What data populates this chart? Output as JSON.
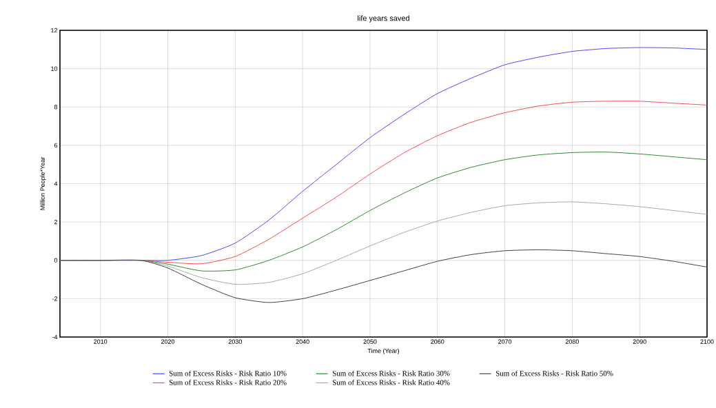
{
  "chart_data": {
    "type": "line",
    "title": "life years saved",
    "xlabel": "Time (Year)",
    "ylabel": "Million People*Year",
    "x": [
      2004,
      2010,
      2016,
      2020,
      2025,
      2030,
      2035,
      2040,
      2045,
      2050,
      2055,
      2060,
      2065,
      2070,
      2075,
      2080,
      2085,
      2090,
      2095,
      2100
    ],
    "series": [
      {
        "name": "Sum of Excess Risks - Risk Ratio 10%",
        "color": "#4a4aff",
        "values": [
          0,
          0,
          0,
          0,
          0.25,
          0.9,
          2.1,
          3.6,
          5.0,
          6.4,
          7.6,
          8.7,
          9.5,
          10.2,
          10.6,
          10.9,
          11.05,
          11.1,
          11.08,
          11.0
        ]
      },
      {
        "name": "Sum of Excess Risks - Risk Ratio 20%",
        "color": "#ff4a4a",
        "values": [
          0,
          0,
          0,
          -0.1,
          -0.18,
          0.2,
          1.1,
          2.2,
          3.3,
          4.5,
          5.6,
          6.5,
          7.2,
          7.7,
          8.05,
          8.25,
          8.3,
          8.3,
          8.2,
          8.1
        ]
      },
      {
        "name": "Sum of Excess Risks - Risk Ratio 30%",
        "color": "#2e8b2e",
        "values": [
          0,
          0,
          0,
          -0.2,
          -0.55,
          -0.5,
          0,
          0.7,
          1.6,
          2.6,
          3.5,
          4.3,
          4.85,
          5.25,
          5.5,
          5.62,
          5.65,
          5.55,
          5.4,
          5.25
        ]
      },
      {
        "name": "Sum of Excess Risks - Risk Ratio 40%",
        "color": "#a8a8a8",
        "values": [
          0,
          0,
          0,
          -0.3,
          -0.9,
          -1.25,
          -1.15,
          -0.7,
          0,
          0.75,
          1.45,
          2.05,
          2.5,
          2.85,
          3.0,
          3.05,
          2.95,
          2.8,
          2.6,
          2.4
        ]
      },
      {
        "name": "Sum of Excess Risks - Risk Ratio 50%",
        "color": "#404040",
        "values": [
          0,
          0,
          0,
          -0.4,
          -1.25,
          -1.95,
          -2.2,
          -2.0,
          -1.55,
          -1.05,
          -0.55,
          -0.05,
          0.3,
          0.5,
          0.55,
          0.5,
          0.35,
          0.2,
          -0.05,
          -0.35
        ]
      }
    ],
    "xlim": [
      2004,
      2100
    ],
    "ylim": [
      -4,
      12
    ],
    "xticks": [
      2010,
      2020,
      2030,
      2040,
      2050,
      2060,
      2070,
      2080,
      2090,
      2100
    ],
    "yticks": [
      -4,
      -2,
      0,
      2,
      4,
      6,
      8,
      10,
      12
    ],
    "grid": true,
    "legend": "bottom",
    "marker": "none",
    "line_style": "solid"
  }
}
